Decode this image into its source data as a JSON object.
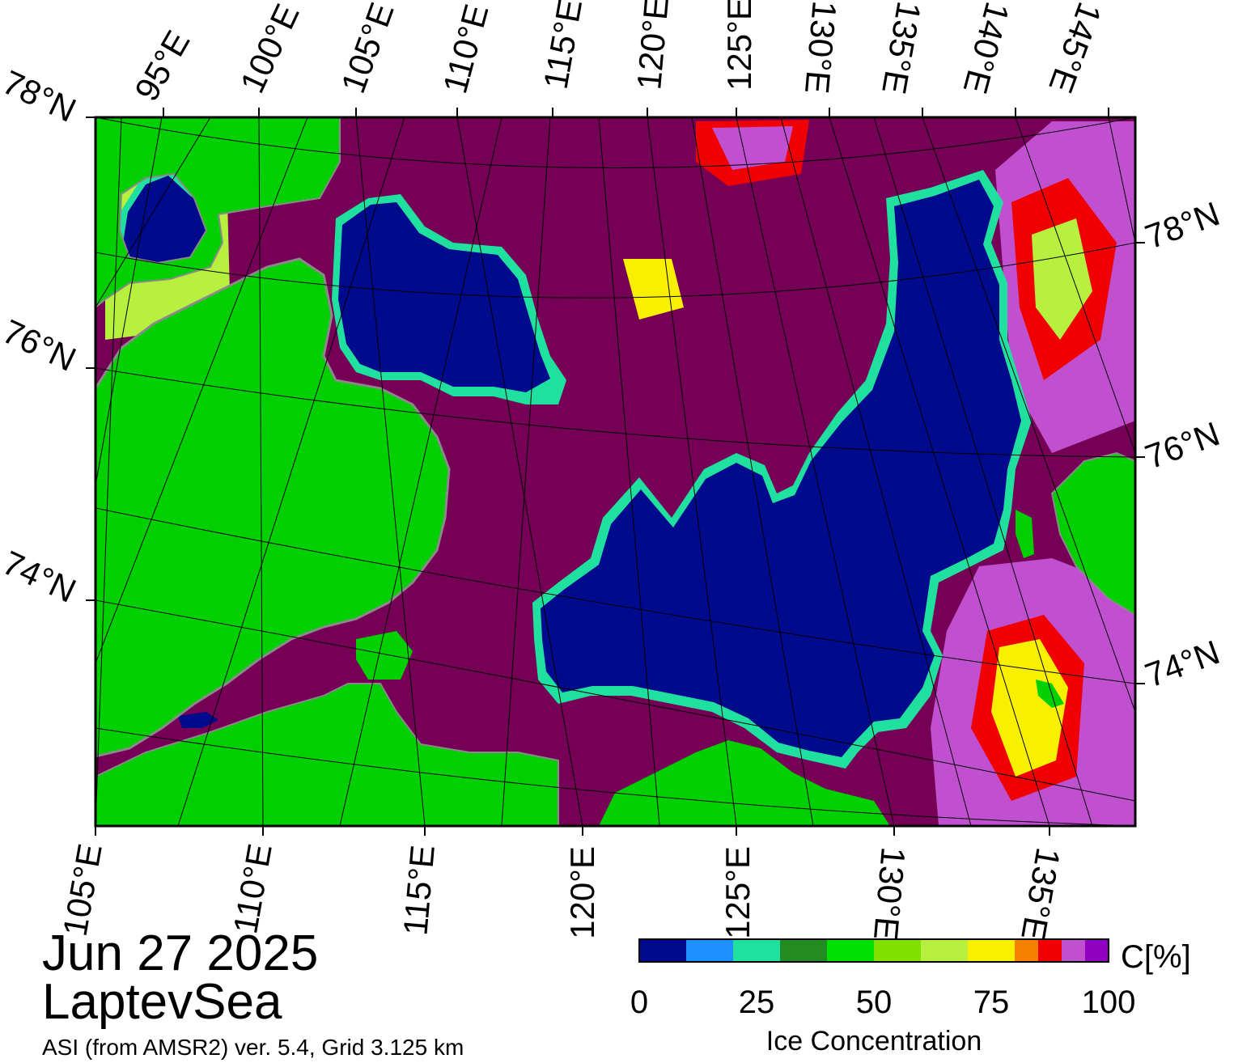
{
  "date": "Jun 27 2025",
  "region": "LaptevSea",
  "source": "ASI (from AMSR2) ver. 5.4,  Grid 3.125 km",
  "colors": {
    "land": "#00d000",
    "coast_gray": "#8a8a8a",
    "open_water": "#000a8c",
    "high_ice": "#750055",
    "frame": "#000000"
  },
  "top_lon_labels": [
    "95°E",
    "100°E",
    "105°E",
    "110°E",
    "115°E",
    "120°E",
    "125°E",
    "130°E",
    "135°E",
    "140°E",
    "145°E"
  ],
  "bottom_lon_labels": [
    "105°E",
    "110°E",
    "115°E",
    "120°E",
    "125°E",
    "130°E",
    "135°E"
  ],
  "left_lat_labels": [
    "78°N",
    "76°N",
    "74°N"
  ],
  "right_lat_labels": [
    "78°N",
    "76°N",
    "74°N"
  ],
  "colorbar": {
    "title": "Ice Concentration",
    "unit": "C[%]",
    "tick_labels": [
      "0",
      "25",
      "50",
      "75",
      "100"
    ],
    "bins": [
      {
        "from": 0,
        "to": 10,
        "color": "#000a8c"
      },
      {
        "from": 10,
        "to": 20,
        "color": "#1e90ff"
      },
      {
        "from": 20,
        "to": 30,
        "color": "#20e0a0"
      },
      {
        "from": 30,
        "to": 40,
        "color": "#228b22"
      },
      {
        "from": 40,
        "to": 50,
        "color": "#00e000"
      },
      {
        "from": 50,
        "to": 60,
        "color": "#80e000"
      },
      {
        "from": 60,
        "to": 70,
        "color": "#b8f040"
      },
      {
        "from": 70,
        "to": 80,
        "color": "#f8f000"
      },
      {
        "from": 80,
        "to": 85,
        "color": "#f88000"
      },
      {
        "from": 85,
        "to": 90,
        "color": "#f00000"
      },
      {
        "from": 90,
        "to": 95,
        "color": "#c050d0"
      },
      {
        "from": 95,
        "to": 100,
        "color": "#9000c0"
      }
    ]
  }
}
